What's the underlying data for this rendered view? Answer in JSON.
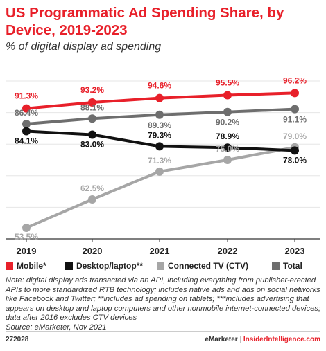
{
  "header": {
    "title": "US Programmatic Ad Spending Share, by Device, 2019-2023",
    "subtitle": "% of digital display ad spending"
  },
  "chart_data": {
    "type": "line",
    "x": [
      "2019",
      "2020",
      "2021",
      "2022",
      "2023"
    ],
    "series": [
      {
        "name": "Mobile*",
        "color": "#e8202a",
        "values": [
          91.3,
          93.2,
          94.6,
          95.5,
          96.2
        ],
        "labels": [
          "91.3%",
          "93.2%",
          "94.6%",
          "95.5%",
          "96.2%"
        ]
      },
      {
        "name": "Desktop/laptop**",
        "color": "#111111",
        "values": [
          84.1,
          83.0,
          79.3,
          78.9,
          78.0
        ],
        "labels": [
          "84.1%",
          "83.0%",
          "79.3%",
          "78.9%",
          "78.0%"
        ]
      },
      {
        "name": "Connected TV (CTV)",
        "color": "#a6a6a6",
        "values": [
          53.5,
          62.5,
          71.3,
          75.0,
          79.0
        ],
        "labels": [
          "53.5%",
          "62.5%",
          "71.3%",
          "75.0%",
          "79.0%"
        ]
      },
      {
        "name": "Total",
        "color": "#6e6e6e",
        "values": [
          86.4,
          88.1,
          89.3,
          90.2,
          91.1
        ],
        "labels": [
          "86.4%",
          "88.1%",
          "89.3%",
          "90.2%",
          "91.1%"
        ]
      }
    ],
    "ylim": [
      50,
      100
    ],
    "grid": true,
    "legend_position": "bottom"
  },
  "note": {
    "text": "Note: digital display ads transacted via an API, including everything from publisher-erected APIs to more standardized RTB technology; includes native ads and ads on social networks like Facebook and Twitter; **includes ad spending on tablets; ***includes advertising that appears on desktop and laptop computers and other nonmobile internet-connected devices; data after 2016 excludes CTV devices",
    "source": "Source: eMarketer, Nov 2021"
  },
  "footer": {
    "id": "272028",
    "brand_left": "eMarketer",
    "separator": "|",
    "brand_right": "InsiderIntelligence.com"
  }
}
